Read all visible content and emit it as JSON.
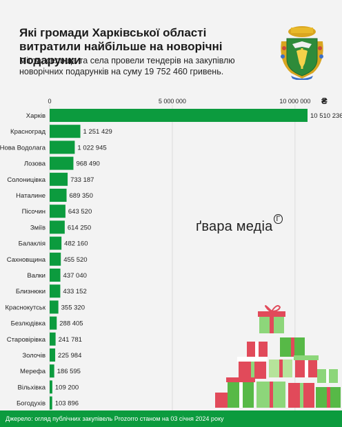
{
  "title": "Які громади Харківської області витратили найбільше на новорічні подарунки",
  "subtitle": "Міста, селища та села провели тендерів на закупівлю новорічних подарунків на суму 19 752 460 гривень.",
  "unit": "₴",
  "watermark": "ґвара медіа",
  "watermark_mark": "Г",
  "footer": "Джерело: огляд публічних закупівель Prozorro станом на 03 січня 2024 року",
  "colors": {
    "bar": "#0c9b3e",
    "footer": "#0c9b3e",
    "background": "#f3f3f3"
  },
  "chart_data": {
    "type": "bar",
    "orientation": "horizontal",
    "xlim": [
      0,
      10510236
    ],
    "xticks": [
      0,
      5000000,
      10000000
    ],
    "xtick_labels": [
      "0",
      "5 000 000",
      "10 000 000"
    ],
    "grid": true,
    "categories": [
      "Харків",
      "Красноград",
      "Нова Водолага",
      "Лозова",
      "Солоницівка",
      "Наталине",
      "Пісочин",
      "Зміїв",
      "Балаклія",
      "Сахновщина",
      "Валки",
      "Близнюки",
      "Краснокутськ",
      "Безлюдівка",
      "Старовірівка",
      "Золочів",
      "Мерефа",
      "Вільхівка",
      "Богодухів"
    ],
    "values": [
      10510236,
      1251429,
      1022945,
      968490,
      733187,
      689350,
      643520,
      614250,
      482160,
      455520,
      437040,
      433152,
      355320,
      288405,
      241781,
      225984,
      186595,
      109200,
      103896
    ],
    "value_labels": [
      "10 510 236",
      "1 251 429",
      "1 022 945",
      "968 490",
      "733 187",
      "689 350",
      "643 520",
      "614 250",
      "482 160",
      "455 520",
      "437 040",
      "433 152",
      "355 320",
      "288 405",
      "241 781",
      "225 984",
      "186 595",
      "109 200",
      "103 896"
    ]
  }
}
